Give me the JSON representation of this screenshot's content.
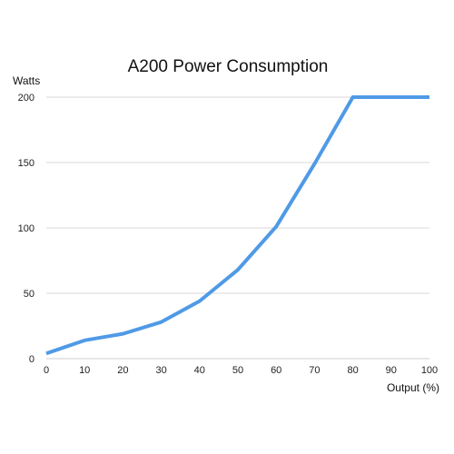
{
  "chart_data": {
    "type": "line",
    "title": "A200 Power Consumption",
    "xlabel": "Output (%)",
    "ylabel": "Watts",
    "x": [
      0,
      10,
      20,
      30,
      40,
      50,
      60,
      70,
      80,
      90,
      100
    ],
    "series": [
      {
        "values": [
          4,
          14,
          19,
          28,
          44,
          68,
          101,
          149,
          200,
          200,
          200
        ],
        "color": "#4f9ae6"
      }
    ],
    "xlim": [
      0,
      100
    ],
    "ylim": [
      0,
      200
    ],
    "xticks": [
      "0",
      "10",
      "20",
      "30",
      "40",
      "50",
      "60",
      "70",
      "80",
      "90",
      "100"
    ],
    "yticks": [
      "0",
      "50",
      "100",
      "150",
      "200"
    ],
    "grid": true
  }
}
